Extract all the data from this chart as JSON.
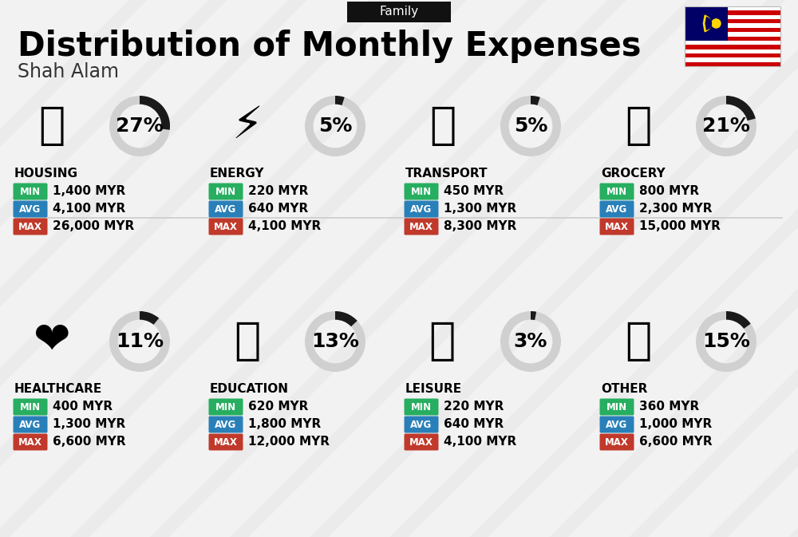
{
  "title": "Distribution of Monthly Expenses",
  "subtitle": "Shah Alam",
  "header_label": "Family",
  "bg_color": "#f2f2f2",
  "categories": [
    {
      "name": "HOUSING",
      "pct": 27,
      "min": "1,400 MYR",
      "avg": "4,100 MYR",
      "max": "26,000 MYR",
      "icon": "🏢",
      "col": 0,
      "row": 0
    },
    {
      "name": "ENERGY",
      "pct": 5,
      "min": "220 MYR",
      "avg": "640 MYR",
      "max": "4,100 MYR",
      "icon": "⚡",
      "col": 1,
      "row": 0
    },
    {
      "name": "TRANSPORT",
      "pct": 5,
      "min": "450 MYR",
      "avg": "1,300 MYR",
      "max": "8,300 MYR",
      "icon": "🚌",
      "col": 2,
      "row": 0
    },
    {
      "name": "GROCERY",
      "pct": 21,
      "min": "800 MYR",
      "avg": "2,300 MYR",
      "max": "15,000 MYR",
      "icon": "🛒",
      "col": 3,
      "row": 0
    },
    {
      "name": "HEALTHCARE",
      "pct": 11,
      "min": "400 MYR",
      "avg": "1,300 MYR",
      "max": "6,600 MYR",
      "icon": "❤️",
      "col": 0,
      "row": 1
    },
    {
      "name": "EDUCATION",
      "pct": 13,
      "min": "620 MYR",
      "avg": "1,800 MYR",
      "max": "12,000 MYR",
      "icon": "🎓",
      "col": 1,
      "row": 1
    },
    {
      "name": "LEISURE",
      "pct": 3,
      "min": "220 MYR",
      "avg": "640 MYR",
      "max": "4,100 MYR",
      "icon": "🛍️",
      "col": 2,
      "row": 1
    },
    {
      "name": "OTHER",
      "pct": 15,
      "min": "360 MYR",
      "avg": "1,000 MYR",
      "max": "6,600 MYR",
      "icon": "👛",
      "col": 3,
      "row": 1
    }
  ],
  "min_color": "#27ae60",
  "avg_color": "#2980b9",
  "max_color": "#c0392b",
  "label_color": "#ffffff",
  "arc_filled_color": "#1a1a1a",
  "arc_empty_color": "#d0d0d0",
  "title_fontsize": 30,
  "subtitle_fontsize": 17,
  "cat_name_fontsize": 11,
  "pct_fontsize": 18,
  "value_fontsize": 11,
  "badge_fontsize": 8.5
}
